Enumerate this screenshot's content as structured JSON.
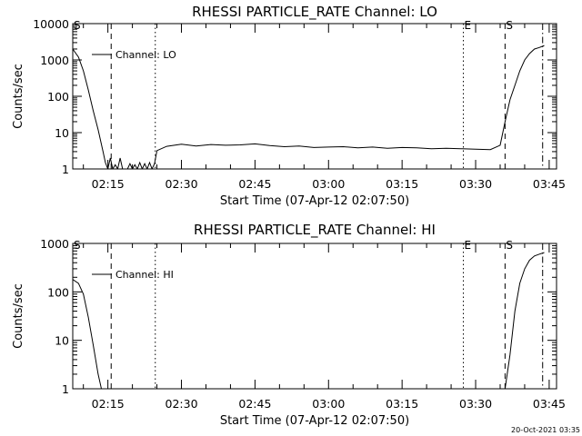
{
  "footer": {
    "timestamp": "20-Oct-2021 03:35"
  },
  "chart_data": [
    {
      "type": "line",
      "title": "RHESSI PARTICLE_RATE Channel: LO",
      "xlabel": "Start Time (07-Apr-12 02:07:50)",
      "ylabel": "Counts/sec",
      "y_scale": "log",
      "xlim": [
        "02:07:50",
        "03:46:30"
      ],
      "ylim": [
        1,
        10000
      ],
      "x_ticks": [
        "02:15",
        "02:30",
        "02:45",
        "03:00",
        "03:15",
        "03:30",
        "03:45"
      ],
      "y_ticks": [
        "1",
        "10",
        "100",
        "1000",
        "10000"
      ],
      "legend": {
        "position": "top-left",
        "entries": [
          "Channel: LO"
        ]
      },
      "series": [
        {
          "name": "Channel: LO",
          "x": [
            "02:07:50",
            "02:09:00",
            "02:10:00",
            "02:11:00",
            "02:12:00",
            "02:13:00",
            "02:14:00",
            "02:14:30",
            "02:15:00",
            "02:15:30",
            "02:16:00",
            "02:16:30",
            "02:17:00",
            "02:17:30",
            "02:18:00",
            "02:18:30",
            "02:19:00",
            "02:19:30",
            "02:20:00",
            "02:20:30",
            "02:21:00",
            "02:21:30",
            "02:22:00",
            "02:22:30",
            "02:23:00",
            "02:23:30",
            "02:24:00",
            "02:24:30",
            "02:25:00",
            "02:27:00",
            "02:30:00",
            "02:33:00",
            "02:36:00",
            "02:39:00",
            "02:42:00",
            "02:45:00",
            "02:48:00",
            "02:51:00",
            "02:54:00",
            "02:57:00",
            "03:00:00",
            "03:03:00",
            "03:06:00",
            "03:09:00",
            "03:12:00",
            "03:15:00",
            "03:18:00",
            "03:21:00",
            "03:24:00",
            "03:27:00",
            "03:30:00",
            "03:33:00",
            "03:35:00",
            "03:36:00",
            "03:37:00",
            "03:38:00",
            "03:39:00",
            "03:40:00",
            "03:41:00",
            "03:42:00",
            "03:43:00",
            "03:44:00"
          ],
          "y": [
            2000,
            1200,
            500,
            150,
            40,
            12,
            3,
            1.5,
            1,
            2,
            1,
            1.3,
            1,
            2,
            1,
            1,
            1,
            1.4,
            1,
            1.3,
            1,
            1.5,
            1,
            1.4,
            1,
            1.5,
            1,
            1.4,
            3.2,
            4.2,
            4.8,
            4.3,
            4.7,
            4.5,
            4.6,
            4.9,
            4.4,
            4.1,
            4.3,
            3.9,
            4.0,
            4.1,
            3.8,
            4.0,
            3.7,
            3.9,
            3.8,
            3.6,
            3.7,
            3.6,
            3.5,
            3.4,
            4.5,
            20,
            80,
            200,
            500,
            1000,
            1500,
            2000,
            2200,
            2500
          ]
        }
      ],
      "event_lines": [
        {
          "time": "02:15:40",
          "style": "dashed",
          "label": ""
        },
        {
          "time": "02:24:40",
          "style": "dotted",
          "label": ""
        },
        {
          "time": "03:27:30",
          "style": "dotted",
          "label": "E"
        },
        {
          "time": "03:36:00",
          "style": "dashed",
          "label": "S"
        },
        {
          "time": "03:43:40",
          "style": "dashdot",
          "label": ""
        }
      ],
      "edge_label": "S"
    },
    {
      "type": "line",
      "title": "RHESSI PARTICLE_RATE Channel: HI",
      "xlabel": "Start Time (07-Apr-12 02:07:50)",
      "ylabel": "Counts/sec",
      "y_scale": "log",
      "xlim": [
        "02:07:50",
        "03:46:30"
      ],
      "ylim": [
        1,
        1000
      ],
      "x_ticks": [
        "02:15",
        "02:30",
        "02:45",
        "03:00",
        "03:15",
        "03:30",
        "03:45"
      ],
      "y_ticks": [
        "1",
        "10",
        "100",
        "1000"
      ],
      "legend": {
        "position": "top-left",
        "entries": [
          "Channel: HI"
        ]
      },
      "series": [
        {
          "name": "Channel: HI",
          "x": [
            "02:07:50",
            "02:09:00",
            "02:10:00",
            "02:11:00",
            "02:12:00",
            "02:13:00",
            "02:13:40",
            "03:36:00",
            "03:37:00",
            "03:38:00",
            "03:39:00",
            "03:40:00",
            "03:41:00",
            "03:42:00",
            "03:43:00",
            "03:44:00"
          ],
          "y": [
            180,
            150,
            90,
            30,
            8,
            2,
            1,
            1,
            5,
            40,
            150,
            300,
            450,
            550,
            600,
            650
          ]
        }
      ],
      "event_lines": [
        {
          "time": "02:15:40",
          "style": "dashed",
          "label": ""
        },
        {
          "time": "02:24:40",
          "style": "dotted",
          "label": ""
        },
        {
          "time": "03:27:30",
          "style": "dotted",
          "label": "E"
        },
        {
          "time": "03:36:00",
          "style": "dashed",
          "label": "S"
        },
        {
          "time": "03:43:40",
          "style": "dashdot",
          "label": ""
        }
      ],
      "edge_label": "S"
    }
  ]
}
